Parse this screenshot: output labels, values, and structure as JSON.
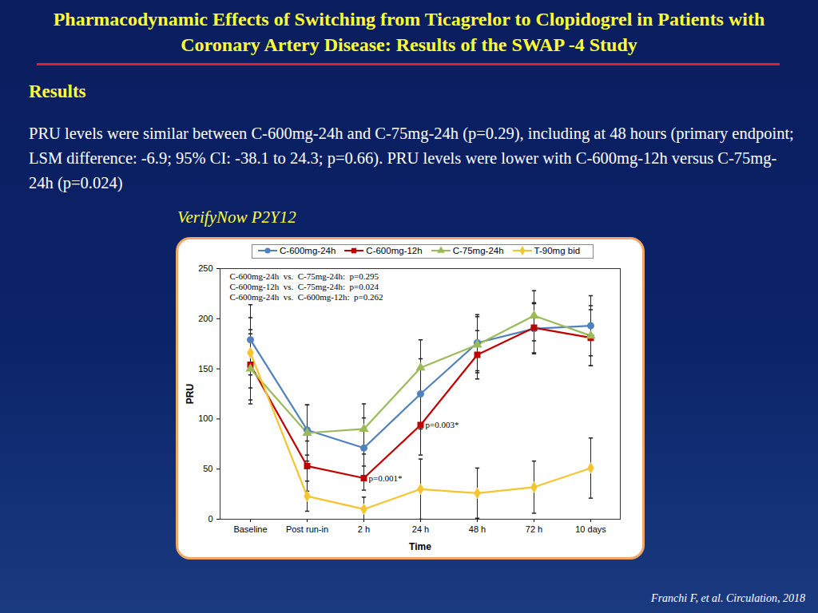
{
  "slide": {
    "title": "Pharmacodynamic Effects of Switching from Ticagrelor to Clopidogrel in Patients with Coronary Artery Disease: Results of the SWAP -4 Study",
    "heading": "Results",
    "text": "PRU levels were similar between C-600mg-24h and C-75mg-24h (p=0.29), including at 48 hours (primary endpoint; LSM difference: -6.9; 95% CI: -38.1 to 24.3; p=0.66). PRU levels were lower with C-600mg-12h versus C-75mg-24h (p=0.024)",
    "citation": "Franchi F, et al. Circulation, 2018"
  },
  "chart_data": {
    "type": "line",
    "title": "VerifyNow P2Y12",
    "x_label": "Time",
    "y_label": "PRU",
    "categories": [
      "Baseline",
      "Post run-in",
      "2 h",
      "24 h",
      "48 h",
      "72 h",
      "10 days"
    ],
    "ylim": [
      0,
      250
    ],
    "yticks": [
      0,
      50,
      100,
      150,
      200,
      250
    ],
    "legend": "top",
    "series": [
      {
        "name": "C-600mg-24h",
        "color": "#4f81bd",
        "marker": "circle",
        "values": [
          179,
          89,
          71,
          125,
          176,
          190,
          193
        ],
        "error": [
          35,
          25,
          30,
          35,
          28,
          25,
          30
        ]
      },
      {
        "name": "C-600mg-12h",
        "color": "#c00000",
        "marker": "square",
        "values": [
          154,
          53,
          41,
          94,
          164,
          191,
          181
        ],
        "error": [
          35,
          25,
          12,
          30,
          24,
          25,
          28
        ]
      },
      {
        "name": "C-75mg-24h",
        "color": "#9bbb59",
        "marker": "triangle",
        "values": [
          150,
          86,
          90,
          151,
          174,
          203,
          183
        ],
        "error": [
          35,
          28,
          25,
          28,
          28,
          25,
          30
        ]
      },
      {
        "name": "T-90mg bid",
        "color": "#f5c431",
        "marker": "diamond",
        "values": [
          166,
          23,
          10,
          30,
          26,
          32,
          51
        ],
        "error": [
          35,
          15,
          12,
          30,
          25,
          26,
          30
        ]
      }
    ],
    "annotations": [
      {
        "text": "C-600mg-24h  vs.  C-75mg-24h:  p=0.295"
      },
      {
        "text": "C-600mg-12h  vs.  C-75mg-24h:  p=0.024"
      },
      {
        "text": "C-600mg-24h  vs.  C-600mg-12h:  p=0.262"
      },
      {
        "text": "p=0.003*",
        "series": "C-600mg-12h",
        "category": "24 h"
      },
      {
        "text": "p=0.001*",
        "series": "C-600mg-12h",
        "category": "2 h"
      }
    ]
  }
}
